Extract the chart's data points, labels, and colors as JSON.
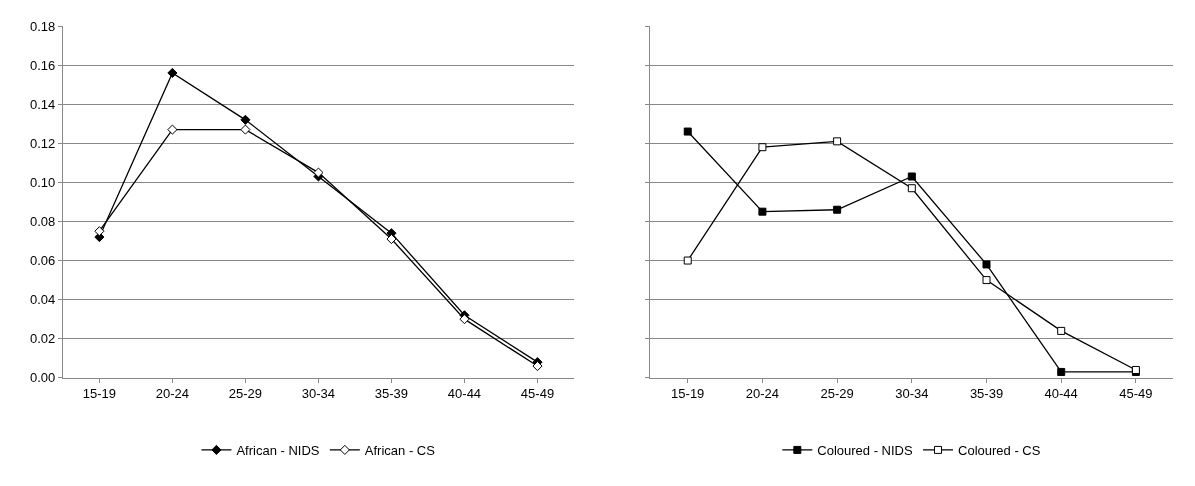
{
  "chart_data": [
    {
      "type": "line",
      "categories": [
        "15-19",
        "20-24",
        "25-29",
        "30-34",
        "35-39",
        "40-44",
        "45-49"
      ],
      "series": [
        {
          "name": "African - NIDS",
          "color": "#000000",
          "marker": "diamond",
          "values": [
            0.072,
            0.156,
            0.132,
            0.103,
            0.074,
            0.032,
            0.008
          ]
        },
        {
          "name": "African - CS",
          "color": "#000000",
          "marker": "diamond",
          "values": [
            0.075,
            0.127,
            0.127,
            0.105,
            0.071,
            0.03,
            0.006
          ]
        }
      ],
      "ylim": [
        0,
        0.18
      ],
      "yticks": [
        {
          "value": 0,
          "label": "0.00"
        },
        {
          "value": 0.02,
          "label": "0.02"
        },
        {
          "value": 0.04,
          "label": "0.04"
        },
        {
          "value": 0.06,
          "label": "0.06"
        },
        {
          "value": 0.08,
          "label": "0.08"
        },
        {
          "value": 0.1,
          "label": "0.10"
        },
        {
          "value": 0.12,
          "label": "0.12"
        },
        {
          "value": 0.14,
          "label": "0.14"
        },
        {
          "value": 0.16,
          "label": "0.16"
        },
        {
          "value": 0.18,
          "label": "0.18"
        }
      ],
      "grid": "y",
      "legend": "bottom",
      "line_style": "solid"
    },
    {
      "type": "line",
      "categories": [
        "15-19",
        "20-24",
        "25-29",
        "30-34",
        "35-39",
        "40-44",
        "45-49"
      ],
      "series": [
        {
          "name": "Coloured - NIDS",
          "color": "#000000",
          "marker": "square",
          "values": [
            0.126,
            0.085,
            0.086,
            0.103,
            0.058,
            0.003,
            0.003
          ]
        },
        {
          "name": "Coloured - CS",
          "color": "#000000",
          "marker": "square",
          "values": [
            0.06,
            0.118,
            0.121,
            0.097,
            0.05,
            0.024,
            0.004
          ]
        }
      ],
      "ylim": [
        0,
        0.18
      ],
      "yticks": [
        {
          "value": 0,
          "label": null
        },
        {
          "value": 0.02,
          "label": null
        },
        {
          "value": 0.04,
          "label": null
        },
        {
          "value": 0.06,
          "label": null
        },
        {
          "value": 0.08,
          "label": null
        },
        {
          "value": 0.1,
          "label": null
        },
        {
          "value": 0.12,
          "label": null
        },
        {
          "value": 0.14,
          "label": null
        },
        {
          "value": 0.16,
          "label": null
        },
        {
          "value": 0.18,
          "label": null
        }
      ],
      "grid": "y",
      "legend": "bottom",
      "tick_labels": "x",
      "line_style": "solid"
    }
  ]
}
